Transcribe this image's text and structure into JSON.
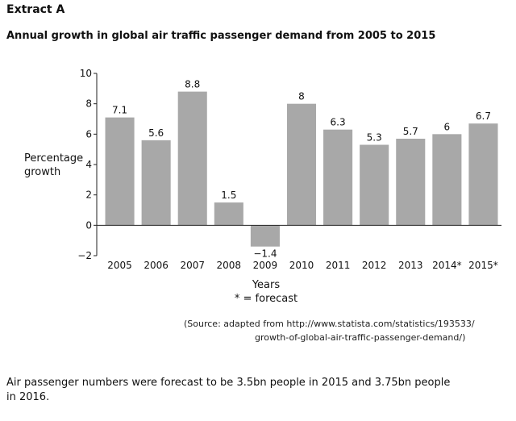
{
  "extract_label": "Extract A",
  "source": {
    "line1": "(Source: adapted from http://www.statista.com/statistics/193533/",
    "line2": "growth-of-global-air-traffic-passenger-demand/)"
  },
  "note": {
    "line1": "Air passenger numbers were forecast to be 3.5bn people in 2015 and 3.75bn people",
    "line2": "in 2016."
  },
  "chart_data": {
    "type": "bar",
    "title": "Annual growth in global air traffic passenger demand from 2005 to 2015",
    "xlabel": "Years",
    "xlabel_note": "* = forecast",
    "ylabel": [
      "Percentage",
      "growth"
    ],
    "categories": [
      "2005",
      "2006",
      "2007",
      "2008",
      "2009",
      "2010",
      "2011",
      "2012",
      "2013",
      "2014*",
      "2015*"
    ],
    "values": [
      7.1,
      5.6,
      8.8,
      1.5,
      -1.4,
      8,
      6.3,
      5.3,
      5.7,
      6,
      6.7
    ],
    "value_labels": [
      "7.1",
      "5.6",
      "8.8",
      "1.5",
      "−1.4",
      "8",
      "6.3",
      "5.3",
      "5.7",
      "6",
      "6.7"
    ],
    "yticks": [
      "−2",
      "0",
      "2",
      "4",
      "6",
      "8",
      "10"
    ],
    "ytick_values": [
      -2,
      0,
      2,
      4,
      6,
      8,
      10
    ],
    "ylim": [
      -2,
      10
    ],
    "bar_color": "#a8a8a8",
    "grid": false,
    "legend": "none"
  }
}
